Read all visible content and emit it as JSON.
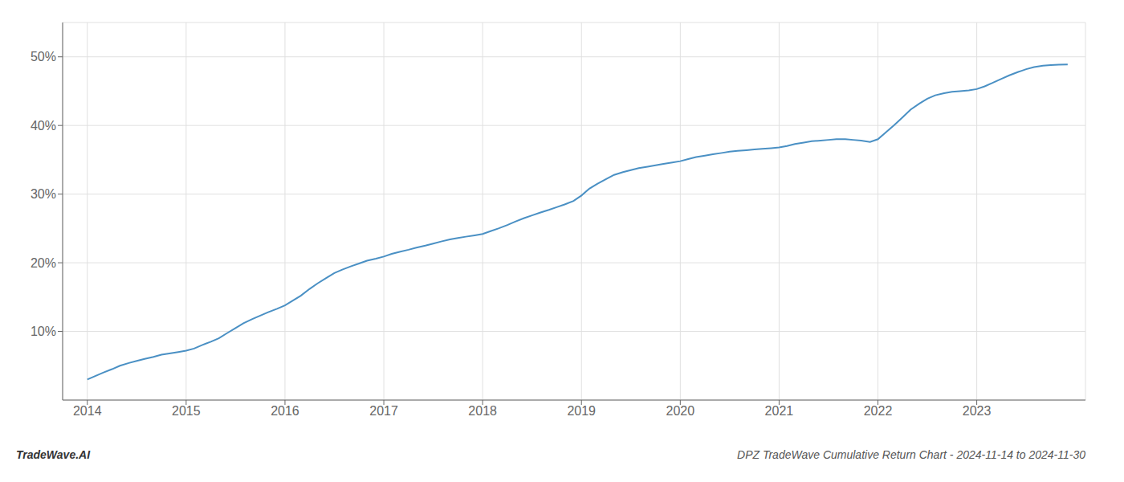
{
  "chart_data": {
    "type": "line",
    "title": "DPZ TradeWave Cumulative Return Chart - 2024-11-14 to 2024-11-30",
    "annotations": [
      "TradeWave.AI"
    ],
    "color": "#4a90c4",
    "grid": true,
    "x": [
      2014.0,
      2014.08,
      2014.16,
      2014.25,
      2014.33,
      2014.42,
      2014.5,
      2014.58,
      2014.67,
      2014.75,
      2014.83,
      2014.92,
      2015.0,
      2015.08,
      2015.16,
      2015.25,
      2015.33,
      2015.42,
      2015.5,
      2015.58,
      2015.67,
      2015.75,
      2015.83,
      2015.92,
      2016.0,
      2016.08,
      2016.16,
      2016.25,
      2016.33,
      2016.42,
      2016.5,
      2016.58,
      2016.67,
      2016.75,
      2016.83,
      2016.92,
      2017.0,
      2017.08,
      2017.16,
      2017.25,
      2017.33,
      2017.42,
      2017.5,
      2017.58,
      2017.67,
      2017.75,
      2017.83,
      2017.92,
      2018.0,
      2018.08,
      2018.16,
      2018.25,
      2018.33,
      2018.42,
      2018.5,
      2018.58,
      2018.67,
      2018.75,
      2018.83,
      2018.92,
      2019.0,
      2019.08,
      2019.16,
      2019.25,
      2019.33,
      2019.42,
      2019.5,
      2019.58,
      2019.67,
      2019.75,
      2019.83,
      2019.92,
      2020.0,
      2020.08,
      2020.16,
      2020.25,
      2020.33,
      2020.42,
      2020.5,
      2020.58,
      2020.67,
      2020.75,
      2020.83,
      2020.92,
      2021.0,
      2021.08,
      2021.16,
      2021.25,
      2021.33,
      2021.42,
      2021.5,
      2021.58,
      2021.67,
      2021.75,
      2021.83,
      2021.92,
      2022.0,
      2022.08,
      2022.16,
      2022.25,
      2022.33,
      2022.42,
      2022.5,
      2022.58,
      2022.67,
      2022.75,
      2022.83,
      2022.92,
      2023.0,
      2023.08,
      2023.16,
      2023.25,
      2023.33,
      2023.42,
      2023.5,
      2023.58,
      2023.67,
      2023.75,
      2023.83,
      2023.92
    ],
    "values": [
      3.0,
      3.5,
      4.0,
      4.5,
      5.0,
      5.4,
      5.7,
      6.0,
      6.3,
      6.6,
      6.8,
      7.0,
      7.2,
      7.5,
      8.0,
      8.5,
      9.0,
      9.8,
      10.5,
      11.2,
      11.8,
      12.3,
      12.8,
      13.3,
      13.8,
      14.5,
      15.2,
      16.2,
      17.0,
      17.8,
      18.5,
      19.0,
      19.5,
      19.9,
      20.3,
      20.6,
      20.9,
      21.3,
      21.6,
      21.9,
      22.2,
      22.5,
      22.8,
      23.1,
      23.4,
      23.6,
      23.8,
      24.0,
      24.2,
      24.6,
      25.0,
      25.5,
      26.0,
      26.5,
      26.9,
      27.3,
      27.7,
      28.1,
      28.5,
      29.0,
      29.8,
      30.8,
      31.5,
      32.2,
      32.8,
      33.2,
      33.5,
      33.8,
      34.0,
      34.2,
      34.4,
      34.6,
      34.8,
      35.1,
      35.4,
      35.6,
      35.8,
      36.0,
      36.2,
      36.3,
      36.4,
      36.5,
      36.6,
      36.7,
      36.8,
      37.0,
      37.3,
      37.5,
      37.7,
      37.8,
      37.9,
      38.0,
      38.0,
      37.9,
      37.8,
      37.6,
      38.0,
      39.0,
      40.0,
      41.2,
      42.3,
      43.2,
      43.9,
      44.4,
      44.7,
      44.9,
      45.0,
      45.1,
      45.3,
      45.7,
      46.2,
      46.8,
      47.3,
      47.8,
      48.2,
      48.5,
      48.7,
      48.8,
      48.85,
      48.9
    ],
    "xlim": [
      2013.75,
      2024.1
    ],
    "xticks": [
      2014,
      2015,
      2016,
      2017,
      2018,
      2019,
      2020,
      2021,
      2022,
      2023
    ],
    "ylim": [
      0,
      55
    ],
    "yticks": [
      {
        "value": 10,
        "label": "10%"
      },
      {
        "value": 20,
        "label": "20%"
      },
      {
        "value": 30,
        "label": "30%"
      },
      {
        "value": 40,
        "label": "40%"
      },
      {
        "value": 50,
        "label": "50%"
      }
    ]
  }
}
